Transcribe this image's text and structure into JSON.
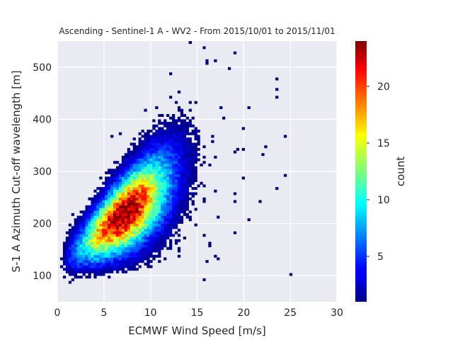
{
  "chart_data": {
    "type": "heatmap",
    "title": "Ascending - Sentinel-1 A - WV2 - From 2015/10/01 to 2015/11/01",
    "xlabel": "ECMWF Wind Speed [m/s]",
    "ylabel": "S-1 A Azimuth Cut-off wavelength [m]",
    "xlim": [
      0,
      30
    ],
    "ylim": [
      50,
      550
    ],
    "xticks": [
      0,
      5,
      10,
      15,
      20,
      25,
      30
    ],
    "yticks": [
      100,
      200,
      300,
      400,
      500
    ],
    "x_tick_labels": [
      "0",
      "5",
      "10",
      "15",
      "20",
      "25",
      "30"
    ],
    "y_tick_labels": [
      "100",
      "200",
      "300",
      "400",
      "500"
    ],
    "grid": true,
    "colormap": "jet",
    "colorbar": {
      "label": "count",
      "range": [
        1,
        24
      ],
      "ticks": [
        5,
        10,
        15,
        20
      ],
      "tick_labels": [
        "5",
        "10",
        "15",
        "20"
      ]
    },
    "bin_size": {
      "x": 0.3,
      "y": 5
    },
    "density_model": {
      "description": "2D count histogram; densest near wind speed 6-8 m/s and cut-off 190-240 m; counts peak about 24",
      "peak_center": [
        7,
        215
      ],
      "correlation_trend": "cut-off increases with wind speed",
      "max_count": 24
    }
  },
  "colors": {
    "plot_background": "#eaeaf2",
    "grid": "#ffffff",
    "text": "#262626"
  }
}
